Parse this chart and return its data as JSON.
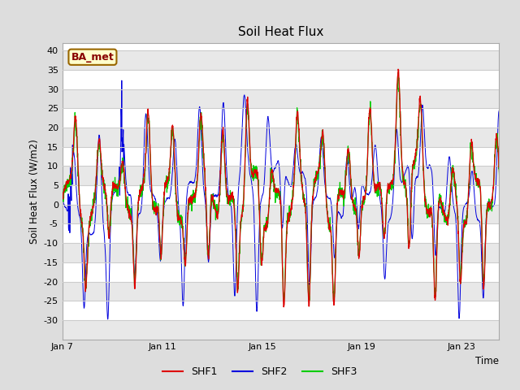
{
  "title": "Soil Heat Flux",
  "ylabel": "Soil Heat Flux (W/m2)",
  "xlabel": "Time",
  "ylim": [
    -35,
    42
  ],
  "yticks": [
    -30,
    -25,
    -20,
    -15,
    -10,
    -5,
    0,
    5,
    10,
    15,
    20,
    25,
    30,
    35,
    40
  ],
  "xtick_positions": [
    0,
    4,
    8,
    12,
    16
  ],
  "xtick_labels": [
    "Jan 7",
    "Jan 11",
    "Jan 15",
    "Jan 19",
    "Jan 23"
  ],
  "legend_labels": [
    "SHF1",
    "SHF2",
    "SHF3"
  ],
  "colors": {
    "SHF1": "#dd0000",
    "SHF2": "#0000dd",
    "SHF3": "#00cc00"
  },
  "station_label": "BA_met",
  "station_box_facecolor": "#ffffcc",
  "station_box_edgecolor": "#996600",
  "station_text_color": "#880000",
  "background_color": "#dddddd",
  "plot_bg_color": "#ffffff",
  "grid_color": "#cccccc",
  "n_points": 2000,
  "seed": 7
}
